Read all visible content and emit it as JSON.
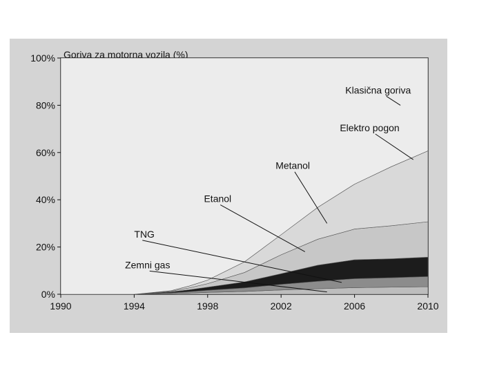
{
  "chart_data": {
    "type": "area",
    "stacked": true,
    "title": "Goriva za motorna vozila (%)",
    "xlabel": "",
    "ylabel": "",
    "xlim": [
      1990,
      2010
    ],
    "ylim": [
      0,
      100
    ],
    "x_ticks": [
      "1990",
      "1994",
      "1998",
      "2002",
      "2006",
      "2010"
    ],
    "y_ticks": [
      "0%",
      "20%",
      "40%",
      "60%",
      "80%",
      "100%"
    ],
    "x": [
      1990,
      1994,
      1996,
      1997,
      1998,
      2000,
      2002,
      2004,
      2006,
      2008,
      2010
    ],
    "series": [
      {
        "name": "Zemni gas",
        "color": "#bdbdbd",
        "values": [
          0,
          0,
          0.3,
          0.5,
          0.8,
          1.2,
          1.8,
          2.3,
          2.8,
          3.0,
          3.2
        ]
      },
      {
        "name": "TNG",
        "color": "#8c8c8c",
        "values": [
          0,
          0,
          0.3,
          0.6,
          0.9,
          1.5,
          2.4,
          3.2,
          3.8,
          4.0,
          4.3
        ]
      },
      {
        "name": "Etanol",
        "color": "#1c1c1c",
        "values": [
          0,
          0,
          0.4,
          0.8,
          1.3,
          2.5,
          4.5,
          6.8,
          8.0,
          8.0,
          8.2
        ]
      },
      {
        "name": "Metanol",
        "color": "#c7c7c7",
        "values": [
          0,
          0,
          0.3,
          0.8,
          1.5,
          4.0,
          8.0,
          11.0,
          13.0,
          14.0,
          15.0
        ]
      },
      {
        "name": "Elektro pogon",
        "color": "#d9d9d9",
        "values": [
          0,
          0,
          0.2,
          0.8,
          1.5,
          4.5,
          8.5,
          13.5,
          19.0,
          25.0,
          30.0
        ]
      },
      {
        "name": "Klasična goriva",
        "color": "#ececec",
        "values": [
          100,
          100,
          98.5,
          96.5,
          94.0,
          86.3,
          74.8,
          63.2,
          53.4,
          46.0,
          39.3
        ]
      }
    ],
    "annotations": [
      {
        "text": "Klasična goriva",
        "x": 2005.5,
        "y": 85
      },
      {
        "text": "Elektro pogon",
        "x": 2005.2,
        "y": 69
      },
      {
        "text": "Metanol",
        "x": 2001.7,
        "y": 53
      },
      {
        "text": "Etanol",
        "x": 1997.8,
        "y": 39
      },
      {
        "text": "TNG",
        "x": 1994.0,
        "y": 24
      },
      {
        "text": "Zemni gas",
        "x": 1993.5,
        "y": 11
      }
    ],
    "grid": false,
    "legend": "none"
  }
}
